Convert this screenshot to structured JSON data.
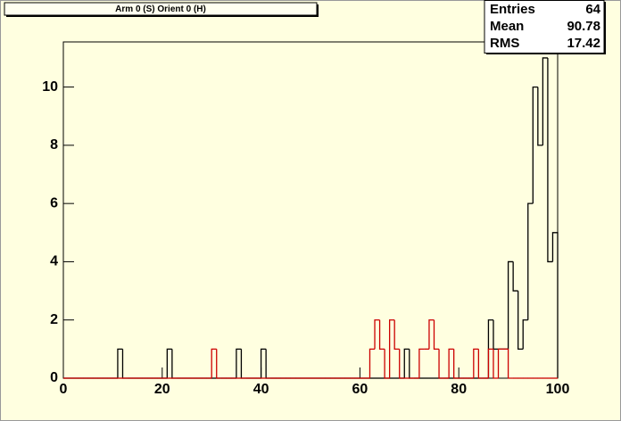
{
  "chart_data": {
    "type": "histogram",
    "title": "Arm 0 (S) Orient 0 (H)",
    "bins": [
      0,
      1,
      2,
      3,
      4,
      5,
      6,
      7,
      8,
      9,
      10,
      11,
      12,
      13,
      14,
      15,
      16,
      17,
      18,
      19,
      20,
      21,
      22,
      23,
      24,
      25,
      26,
      27,
      28,
      29,
      30,
      31,
      32,
      33,
      34,
      35,
      36,
      37,
      38,
      39,
      40,
      41,
      42,
      43,
      44,
      45,
      46,
      47,
      48,
      49,
      50,
      51,
      52,
      53,
      54,
      55,
      56,
      57,
      58,
      59,
      60,
      61,
      62,
      63,
      64,
      65,
      66,
      67,
      68,
      69,
      70,
      71,
      72,
      73,
      74,
      75,
      76,
      77,
      78,
      79,
      80,
      81,
      82,
      83,
      84,
      85,
      86,
      87,
      88,
      89,
      90,
      91,
      92,
      93,
      94,
      95,
      96,
      97,
      98,
      99,
      100
    ],
    "series": [
      {
        "color": "#000000",
        "values": [
          0,
          0,
          0,
          0,
          0,
          0,
          0,
          0,
          0,
          0,
          0,
          1,
          0,
          0,
          0,
          0,
          0,
          0,
          0,
          0,
          0,
          1,
          0,
          0,
          0,
          0,
          0,
          0,
          0,
          0,
          0,
          0,
          0,
          0,
          0,
          1,
          0,
          0,
          0,
          0,
          1,
          0,
          0,
          0,
          0,
          0,
          0,
          0,
          0,
          0,
          0,
          0,
          0,
          0,
          0,
          0,
          0,
          0,
          0,
          0,
          0,
          0,
          0,
          0,
          0,
          0,
          0,
          0,
          0,
          1,
          0,
          0,
          0,
          0,
          0,
          0,
          0,
          0,
          0,
          0,
          0,
          0,
          0,
          0,
          0,
          0,
          2,
          1,
          1,
          1,
          4,
          3,
          1,
          2,
          6,
          10,
          8,
          11,
          4,
          5
        ]
      },
      {
        "color": "#cc0000",
        "values": [
          0,
          0,
          0,
          0,
          0,
          0,
          0,
          0,
          0,
          0,
          0,
          0,
          0,
          0,
          0,
          0,
          0,
          0,
          0,
          0,
          0,
          0,
          0,
          0,
          0,
          0,
          0,
          0,
          0,
          0,
          1,
          0,
          0,
          0,
          0,
          0,
          0,
          0,
          0,
          0,
          0,
          0,
          0,
          0,
          0,
          0,
          0,
          0,
          0,
          0,
          0,
          0,
          0,
          0,
          0,
          0,
          0,
          0,
          0,
          0,
          0,
          0,
          1,
          2,
          1,
          0,
          2,
          1,
          0,
          0,
          0,
          0,
          1,
          1,
          2,
          1,
          0,
          0,
          1,
          0,
          0,
          0,
          0,
          1,
          0,
          0,
          1,
          0,
          1,
          1,
          0,
          0,
          0,
          0,
          0,
          0,
          0,
          0,
          0,
          0
        ]
      }
    ],
    "xlim": [
      0,
      100
    ],
    "xticks": [
      0,
      20,
      40,
      60,
      80,
      100
    ],
    "ylim": [
      0,
      11.55
    ],
    "yticks": [
      0,
      2,
      4,
      6,
      8,
      10
    ],
    "stats": [
      {
        "label": "Entries",
        "value": 64
      },
      {
        "label": "Mean",
        "value": 90.78
      },
      {
        "label": "RMS",
        "value": 17.42
      }
    ]
  }
}
